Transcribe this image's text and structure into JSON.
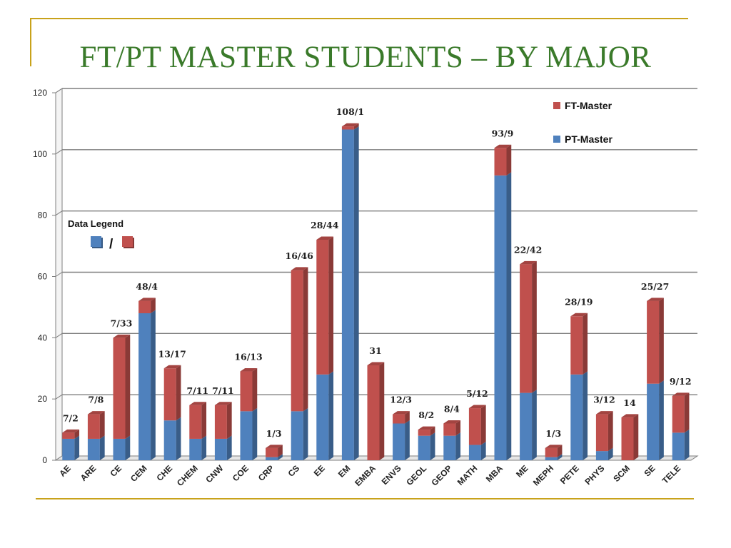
{
  "slide": {
    "title": "FT/PT MASTER STUDENTS – BY MAJOR"
  },
  "colors": {
    "pt": "#4f81bd",
    "ft": "#c0504d",
    "title": "#3a7a2a",
    "accent": "#c8a21a"
  },
  "chart_data": {
    "type": "bar",
    "stacked": true,
    "title": "",
    "xlabel": "",
    "ylabel": "",
    "ylim": [
      0,
      120
    ],
    "yticks": [
      0,
      20,
      40,
      60,
      80,
      100,
      120
    ],
    "grid": true,
    "legend": {
      "placement": "top-right",
      "entries": [
        "FT-Master",
        "PT-Master"
      ]
    },
    "data_legend": {
      "title": "Data Legend",
      "separator": "/"
    },
    "categories": [
      "AE",
      "ARE",
      "CE",
      "CEM",
      "CHE",
      "CHEM",
      "CNW",
      "COE",
      "CRP",
      "CS",
      "EE",
      "EM",
      "EMBA",
      "ENVS",
      "GEOL",
      "GEOP",
      "MATH",
      "MBA",
      "ME",
      "MEPH",
      "PETE",
      "PHYS",
      "SCM",
      "SE",
      "TELE"
    ],
    "series": [
      {
        "name": "PT-Master",
        "values": [
          7,
          7,
          7,
          48,
          13,
          7,
          7,
          16,
          1,
          16,
          28,
          108,
          0,
          12,
          8,
          8,
          5,
          93,
          22,
          1,
          28,
          3,
          0,
          25,
          9
        ]
      },
      {
        "name": "FT-Master",
        "values": [
          2,
          8,
          33,
          4,
          17,
          11,
          11,
          13,
          3,
          46,
          44,
          1,
          31,
          3,
          2,
          4,
          12,
          9,
          42,
          3,
          19,
          12,
          14,
          27,
          12
        ]
      }
    ],
    "data_labels": [
      "7/2",
      "7/8",
      "7/33",
      "48/4",
      "13/17",
      "7/11",
      "7/11",
      "16/13",
      "1/3",
      "16/46",
      "28/44",
      "108/1",
      "31",
      "12/3",
      "8/2",
      "8/4",
      "5/12",
      "93/9",
      "22/42",
      "1/3",
      "28/19",
      "3/12",
      "14",
      "25/27",
      "9/12"
    ]
  }
}
